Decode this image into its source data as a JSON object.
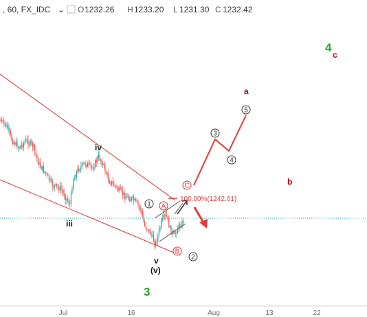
{
  "header": {
    "symbol": ", 60, FX_IDC",
    "o_label": "O",
    "o_value": "1232.26",
    "h_label": "H",
    "h_value": "1233.20",
    "l_label": "L",
    "l_value": "1231.30",
    "c_label": "C",
    "c_value": "1232.42"
  },
  "chart_data": {
    "type": "line",
    "title": "",
    "xlabel": "",
    "ylabel": "",
    "x_ticks": [
      "Jul",
      "16",
      "Aug",
      "13",
      "22"
    ],
    "grid": false,
    "legend": "none",
    "target_label": "100.00%(1242.01)",
    "wave_labels": {
      "iv": "iv",
      "iii": "iii",
      "v": "v",
      "v_paren": "(v)",
      "three": "3",
      "four": "4",
      "c_small": "c",
      "a_small": "a",
      "b_small": "b"
    },
    "circled_labels": [
      "1",
      "2",
      "3",
      "4",
      "5",
      "A",
      "B",
      "C"
    ],
    "colors": {
      "up_candle": "#26a69a",
      "down_candle": "#ef5350",
      "channel": "#e03030",
      "projection": "#e53935",
      "wave_green": "#22aa22",
      "wave_dark_red": "#b00000",
      "dotted_price": "#26a69a"
    }
  }
}
